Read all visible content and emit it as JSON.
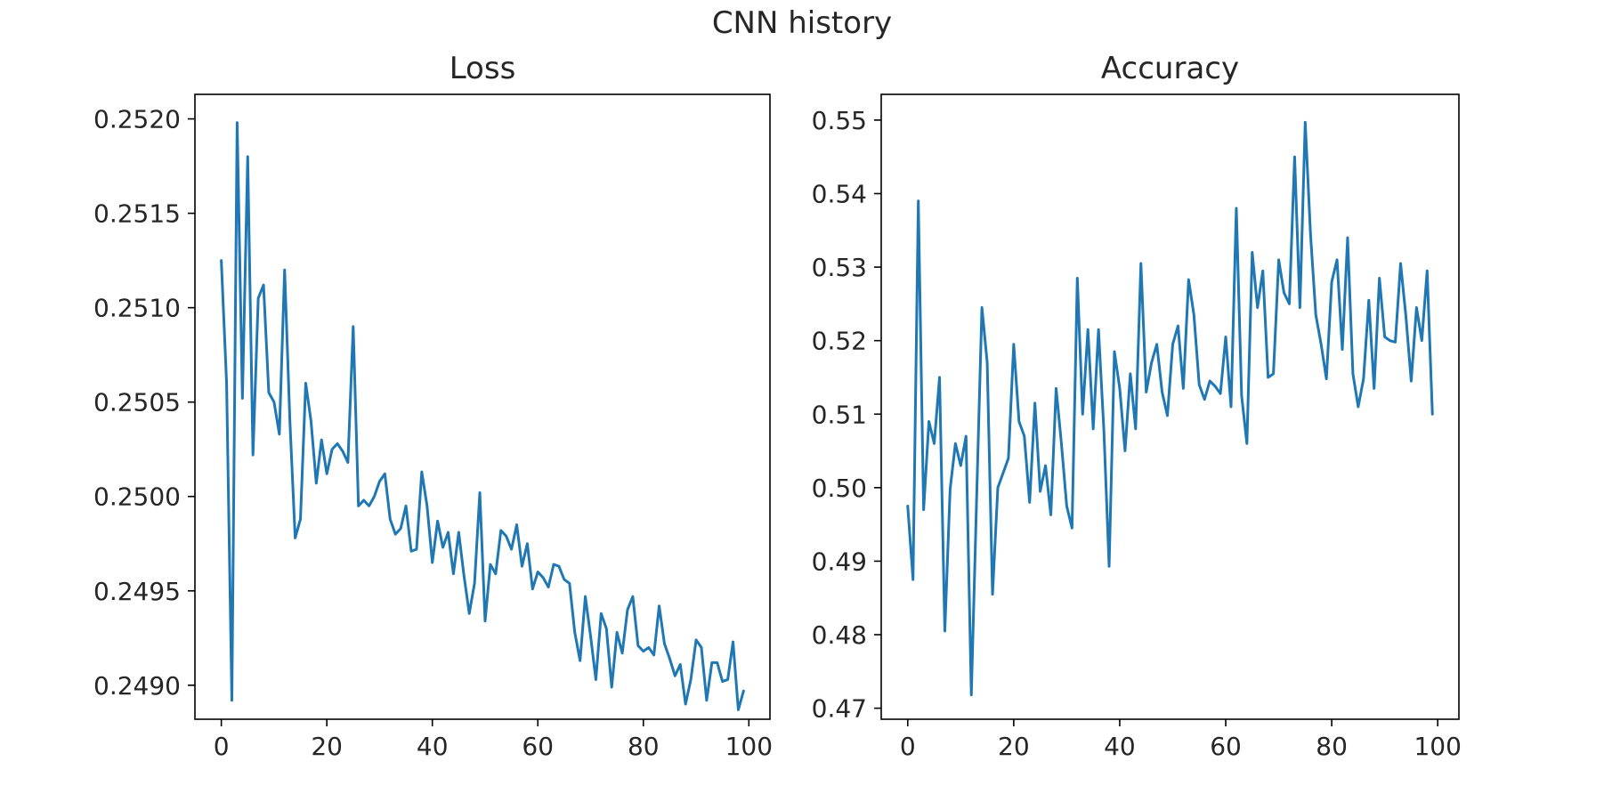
{
  "figure": {
    "suptitle": "CNN history"
  },
  "chart_data": [
    {
      "type": "line",
      "title": "Loss",
      "xlabel": "",
      "ylabel": "",
      "xlim": [
        -5,
        104
      ],
      "ylim": [
        0.24882,
        0.25213
      ],
      "xticks": [
        0,
        20,
        40,
        60,
        80,
        100
      ],
      "xtick_labels": [
        "0",
        "20",
        "40",
        "60",
        "80",
        "100"
      ],
      "yticks": [
        0.249,
        0.2495,
        0.25,
        0.2505,
        0.251,
        0.2515,
        0.252
      ],
      "ytick_labels": [
        "0.2490",
        "0.2495",
        "0.2500",
        "0.2505",
        "0.2510",
        "0.2515",
        "0.2520"
      ],
      "grid": false,
      "color": "#1f77b4",
      "x": [
        0,
        1,
        2,
        3,
        4,
        5,
        6,
        7,
        8,
        9,
        10,
        11,
        12,
        13,
        14,
        15,
        16,
        17,
        18,
        19,
        20,
        21,
        22,
        23,
        24,
        25,
        26,
        27,
        28,
        29,
        30,
        31,
        32,
        33,
        34,
        35,
        36,
        37,
        38,
        39,
        40,
        41,
        42,
        43,
        44,
        45,
        46,
        47,
        48,
        49,
        50,
        51,
        52,
        53,
        54,
        55,
        56,
        57,
        58,
        59,
        60,
        61,
        62,
        63,
        64,
        65,
        66,
        67,
        68,
        69,
        70,
        71,
        72,
        73,
        74,
        75,
        76,
        77,
        78,
        79,
        80,
        81,
        82,
        83,
        84,
        85,
        86,
        87,
        88,
        89,
        90,
        91,
        92,
        93,
        94,
        95,
        96,
        97,
        98,
        99
      ],
      "y": [
        0.25125,
        0.2506,
        0.24892,
        0.25198,
        0.25052,
        0.2518,
        0.25022,
        0.25105,
        0.25112,
        0.25055,
        0.2505,
        0.25033,
        0.2512,
        0.2504,
        0.24978,
        0.24988,
        0.2506,
        0.2504,
        0.25007,
        0.2503,
        0.25012,
        0.25025,
        0.25028,
        0.25024,
        0.25018,
        0.2509,
        0.24995,
        0.24998,
        0.24995,
        0.25,
        0.25008,
        0.25012,
        0.24988,
        0.2498,
        0.24983,
        0.24995,
        0.24971,
        0.24972,
        0.25013,
        0.24995,
        0.24965,
        0.24987,
        0.24973,
        0.24981,
        0.24959,
        0.24981,
        0.24958,
        0.24938,
        0.24954,
        0.25002,
        0.24934,
        0.24964,
        0.24959,
        0.24982,
        0.24979,
        0.24972,
        0.24985,
        0.24963,
        0.24975,
        0.24951,
        0.2496,
        0.24957,
        0.24952,
        0.24964,
        0.24963,
        0.24956,
        0.24954,
        0.24928,
        0.24913,
        0.24947,
        0.24926,
        0.24903,
        0.24938,
        0.2493,
        0.24899,
        0.24928,
        0.24917,
        0.2494,
        0.24947,
        0.24921,
        0.24918,
        0.2492,
        0.24916,
        0.24942,
        0.24922,
        0.24914,
        0.24905,
        0.24911,
        0.2489,
        0.24903,
        0.24924,
        0.2492,
        0.24892,
        0.24912,
        0.24912,
        0.24902,
        0.24903,
        0.24923,
        0.24887,
        0.24897
      ]
    },
    {
      "type": "line",
      "title": "Accuracy",
      "xlabel": "",
      "ylabel": "",
      "xlim": [
        -5,
        104
      ],
      "ylim": [
        0.4685,
        0.5535
      ],
      "xticks": [
        0,
        20,
        40,
        60,
        80,
        100
      ],
      "xtick_labels": [
        "0",
        "20",
        "40",
        "60",
        "80",
        "100"
      ],
      "yticks": [
        0.47,
        0.48,
        0.49,
        0.5,
        0.51,
        0.52,
        0.53,
        0.54,
        0.55
      ],
      "ytick_labels": [
        "0.47",
        "0.48",
        "0.49",
        "0.50",
        "0.51",
        "0.52",
        "0.53",
        "0.54",
        "0.55"
      ],
      "grid": false,
      "color": "#1f77b4",
      "x": [
        0,
        1,
        2,
        3,
        4,
        5,
        6,
        7,
        8,
        9,
        10,
        11,
        12,
        13,
        14,
        15,
        16,
        17,
        18,
        19,
        20,
        21,
        22,
        23,
        24,
        25,
        26,
        27,
        28,
        29,
        30,
        31,
        32,
        33,
        34,
        35,
        36,
        37,
        38,
        39,
        40,
        41,
        42,
        43,
        44,
        45,
        46,
        47,
        48,
        49,
        50,
        51,
        52,
        53,
        54,
        55,
        56,
        57,
        58,
        59,
        60,
        61,
        62,
        63,
        64,
        65,
        66,
        67,
        68,
        69,
        70,
        71,
        72,
        73,
        74,
        75,
        76,
        77,
        78,
        79,
        80,
        81,
        82,
        83,
        84,
        85,
        86,
        87,
        88,
        89,
        90,
        91,
        92,
        93,
        94,
        95,
        96,
        97,
        98,
        99
      ],
      "y": [
        0.4975,
        0.4875,
        0.539,
        0.497,
        0.509,
        0.506,
        0.515,
        0.4805,
        0.4998,
        0.506,
        0.503,
        0.507,
        0.4718,
        0.4985,
        0.5245,
        0.517,
        0.4855,
        0.5,
        0.502,
        0.504,
        0.5195,
        0.509,
        0.507,
        0.498,
        0.5115,
        0.4995,
        0.503,
        0.4963,
        0.5135,
        0.506,
        0.4975,
        0.4945,
        0.5285,
        0.51,
        0.5215,
        0.508,
        0.5215,
        0.508,
        0.4893,
        0.5185,
        0.5135,
        0.505,
        0.5155,
        0.508,
        0.5305,
        0.513,
        0.517,
        0.5195,
        0.513,
        0.5098,
        0.5195,
        0.522,
        0.5135,
        0.5283,
        0.5235,
        0.514,
        0.512,
        0.5145,
        0.5138,
        0.5128,
        0.5205,
        0.511,
        0.538,
        0.5125,
        0.506,
        0.532,
        0.5245,
        0.5295,
        0.515,
        0.5155,
        0.531,
        0.5265,
        0.525,
        0.545,
        0.5245,
        0.5497,
        0.5345,
        0.5235,
        0.5195,
        0.5148,
        0.528,
        0.531,
        0.5188,
        0.534,
        0.5155,
        0.511,
        0.5148,
        0.5255,
        0.5135,
        0.5285,
        0.5205,
        0.52,
        0.5198,
        0.5305,
        0.5233,
        0.5145,
        0.5245,
        0.52,
        0.5295,
        0.51
      ]
    }
  ]
}
